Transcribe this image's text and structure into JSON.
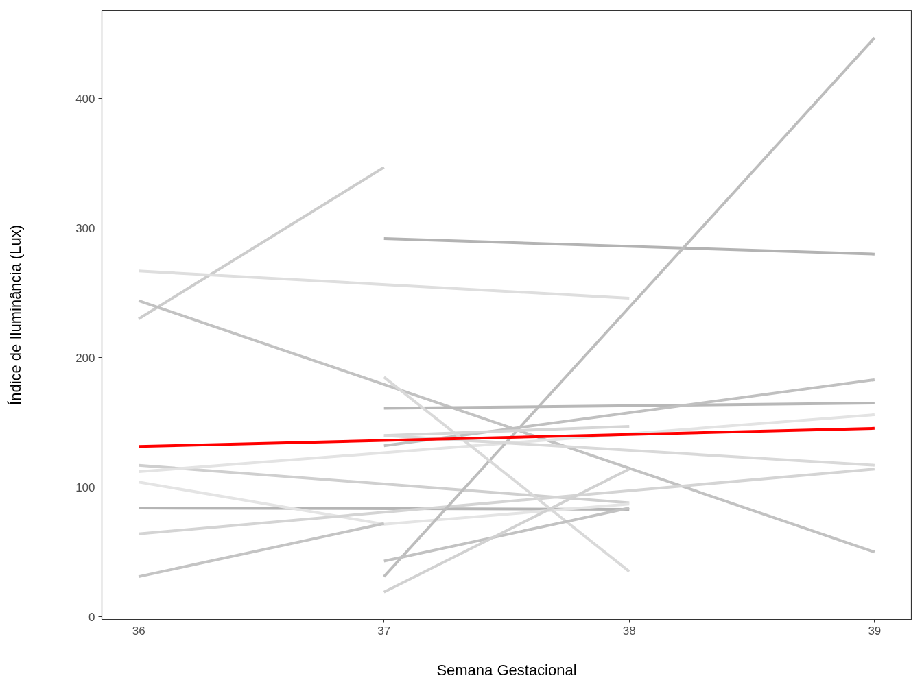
{
  "chart_data": {
    "type": "line",
    "xlabel": "Semana Gestacional",
    "ylabel": "Índice de Iluminância (Lux)",
    "xlim": [
      35.85,
      39.15
    ],
    "xticks": [
      36,
      37,
      38,
      39
    ],
    "ylim": [
      -2,
      468
    ],
    "yticks": [
      0,
      100,
      200,
      300,
      400
    ],
    "grid": false,
    "line_style": "solid",
    "series": [
      {
        "color": "#cccccc",
        "x": [
          36,
          37
        ],
        "values": [
          230,
          347
        ]
      },
      {
        "color": "#dedede",
        "x": [
          36,
          38
        ],
        "values": [
          267,
          246
        ]
      },
      {
        "color": "#c2c2c2",
        "x": [
          36,
          39
        ],
        "values": [
          244,
          50
        ]
      },
      {
        "color": "#cfcfcf",
        "x": [
          36,
          38
        ],
        "values": [
          117,
          88
        ]
      },
      {
        "color": "#b5b5b5",
        "x": [
          36,
          38
        ],
        "values": [
          84,
          83
        ]
      },
      {
        "color": "#e4e4e4",
        "x": [
          36,
          37,
          38
        ],
        "values": [
          104,
          71.5,
          87
        ]
      },
      {
        "color": "#d4d4d4",
        "x": [
          36,
          39
        ],
        "values": [
          64,
          114
        ]
      },
      {
        "color": "#c4c4c4",
        "x": [
          36,
          37
        ],
        "values": [
          31,
          72
        ]
      },
      {
        "color": "#e3e3e3",
        "x": [
          36,
          39
        ],
        "values": [
          112,
          156
        ]
      },
      {
        "color": "#b3b3b3",
        "x": [
          37,
          39
        ],
        "values": [
          292,
          280
        ]
      },
      {
        "color": "#bdbdbd",
        "x": [
          37,
          39
        ],
        "values": [
          31,
          447
        ]
      },
      {
        "color": "#b8b8b8",
        "x": [
          37,
          39
        ],
        "values": [
          161,
          165
        ]
      },
      {
        "color": "#c0c0c0",
        "x": [
          37,
          39
        ],
        "values": [
          132,
          183
        ]
      },
      {
        "color": "#d6d6d6",
        "x": [
          37,
          38
        ],
        "values": [
          140,
          147
        ]
      },
      {
        "color": "#d9d9d9",
        "x": [
          37,
          39
        ],
        "values": [
          140,
          117
        ]
      },
      {
        "color": "#d9d9d9",
        "x": [
          37,
          38
        ],
        "values": [
          185,
          35
        ]
      },
      {
        "color": "#c2c2c2",
        "x": [
          37,
          38
        ],
        "values": [
          43,
          84
        ]
      },
      {
        "color": "#d1d1d1",
        "x": [
          37,
          38
        ],
        "values": [
          19,
          114
        ]
      },
      {
        "color": "#ff0000",
        "x": [
          36,
          39
        ],
        "values": [
          131.5,
          145.5
        ]
      }
    ]
  }
}
